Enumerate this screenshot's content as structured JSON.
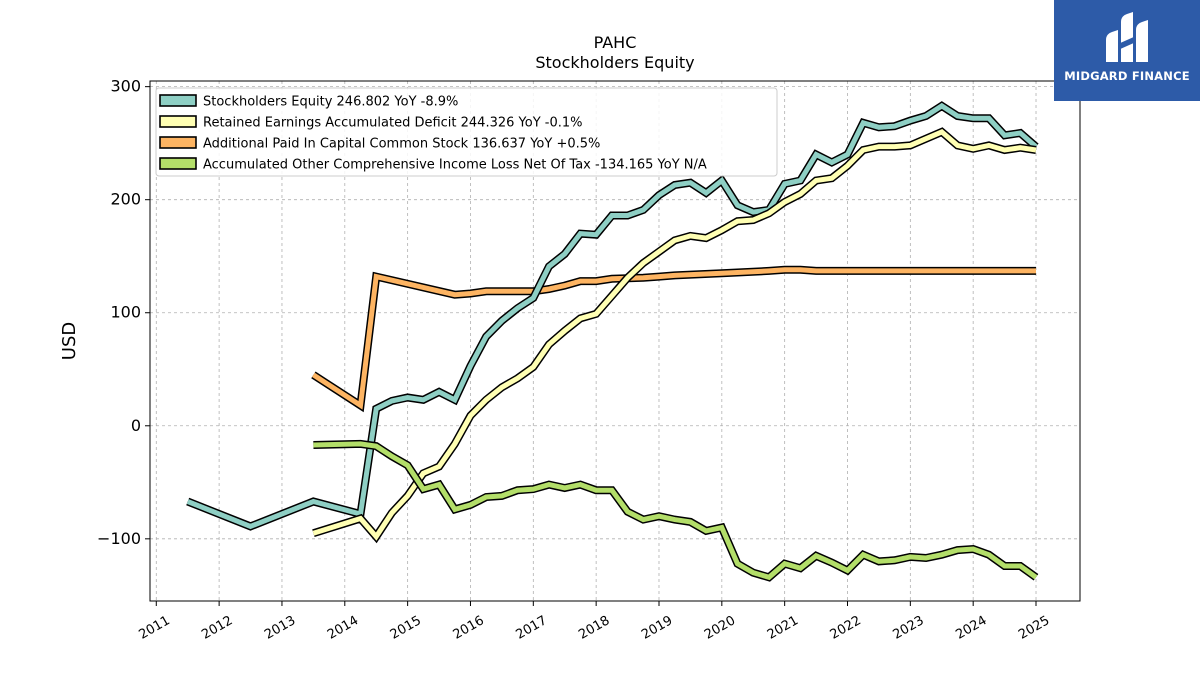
{
  "brand": {
    "name": "MIDGARD FINANCE",
    "color": "#2d5ba8",
    "icon": "midgard-logo-icon"
  },
  "chart_data": {
    "type": "line",
    "title": "PAHC",
    "subtitle": "Stockholders  Equity",
    "xlabel": "",
    "ylabel": "USD",
    "xlim": [
      2010.9,
      2025.7
    ],
    "ylim": [
      -155,
      305
    ],
    "x_ticks": [
      "2011",
      "2012",
      "2013",
      "2014",
      "2015",
      "2016",
      "2017",
      "2018",
      "2019",
      "2020",
      "2021",
      "2022",
      "2023",
      "2024",
      "2025"
    ],
    "y_ticks": [
      -100,
      0,
      100,
      200,
      300
    ],
    "y_tick_labels": [
      "−100",
      "0",
      "100",
      "200",
      "300"
    ],
    "grid": true,
    "legend_position": "top-left",
    "series": [
      {
        "name": "Stockholders Equity  246.802 YoY -8.9%",
        "color": "#8ecfc4",
        "points": [
          [
            2011.5,
            -67
          ],
          [
            2012.5,
            -89
          ],
          [
            2013.5,
            -67
          ],
          [
            2014.25,
            -78
          ],
          [
            2014.5,
            15
          ],
          [
            2014.75,
            22
          ],
          [
            2015.0,
            25
          ],
          [
            2015.25,
            23
          ],
          [
            2015.5,
            30
          ],
          [
            2015.75,
            23
          ],
          [
            2016.0,
            53
          ],
          [
            2016.25,
            79
          ],
          [
            2016.5,
            93
          ],
          [
            2016.75,
            104
          ],
          [
            2017.0,
            113
          ],
          [
            2017.25,
            141
          ],
          [
            2017.5,
            152
          ],
          [
            2017.75,
            170
          ],
          [
            2018.0,
            169
          ],
          [
            2018.25,
            186
          ],
          [
            2018.5,
            186
          ],
          [
            2018.75,
            191
          ],
          [
            2019.0,
            204
          ],
          [
            2019.25,
            213
          ],
          [
            2019.5,
            215
          ],
          [
            2019.75,
            206
          ],
          [
            2020.0,
            217
          ],
          [
            2020.25,
            195
          ],
          [
            2020.5,
            189
          ],
          [
            2020.75,
            191
          ],
          [
            2021.0,
            214
          ],
          [
            2021.25,
            217
          ],
          [
            2021.5,
            240
          ],
          [
            2021.75,
            233
          ],
          [
            2022.0,
            240
          ],
          [
            2022.25,
            268
          ],
          [
            2022.5,
            264
          ],
          [
            2022.75,
            265
          ],
          [
            2023.0,
            270
          ],
          [
            2023.25,
            274
          ],
          [
            2023.5,
            283
          ],
          [
            2023.75,
            274
          ],
          [
            2024.0,
            272
          ],
          [
            2024.25,
            272
          ],
          [
            2024.5,
            257
          ],
          [
            2024.75,
            259
          ],
          [
            2025.0,
            247
          ]
        ]
      },
      {
        "name": "Retained Earnings Accumulated Deficit  244.326 YoY -0.1%",
        "color": "#ffffb3",
        "points": [
          [
            2013.5,
            -95
          ],
          [
            2014.25,
            -82
          ],
          [
            2014.5,
            -98
          ],
          [
            2014.75,
            -77
          ],
          [
            2015.0,
            -62
          ],
          [
            2015.25,
            -42
          ],
          [
            2015.5,
            -36
          ],
          [
            2015.75,
            -16
          ],
          [
            2016.0,
            9
          ],
          [
            2016.25,
            23
          ],
          [
            2016.5,
            34
          ],
          [
            2016.75,
            42
          ],
          [
            2017.0,
            52
          ],
          [
            2017.25,
            72
          ],
          [
            2017.5,
            84
          ],
          [
            2017.75,
            95
          ],
          [
            2018.0,
            99
          ],
          [
            2018.25,
            115
          ],
          [
            2018.5,
            131
          ],
          [
            2018.75,
            144
          ],
          [
            2019.0,
            154
          ],
          [
            2019.25,
            164
          ],
          [
            2019.5,
            168
          ],
          [
            2019.75,
            166
          ],
          [
            2020.0,
            173
          ],
          [
            2020.25,
            181
          ],
          [
            2020.5,
            182
          ],
          [
            2020.75,
            188
          ],
          [
            2021.0,
            198
          ],
          [
            2021.25,
            205
          ],
          [
            2021.5,
            217
          ],
          [
            2021.75,
            219
          ],
          [
            2022.0,
            230
          ],
          [
            2022.25,
            244
          ],
          [
            2022.5,
            247
          ],
          [
            2022.75,
            247
          ],
          [
            2023.0,
            248
          ],
          [
            2023.25,
            254
          ],
          [
            2023.5,
            260
          ],
          [
            2023.75,
            248
          ],
          [
            2024.0,
            245
          ],
          [
            2024.25,
            248
          ],
          [
            2024.5,
            244
          ],
          [
            2024.75,
            246
          ],
          [
            2025.0,
            244
          ]
        ]
      },
      {
        "name": "Additional Paid In Capital Common Stock  136.637 YoY +0.5%",
        "color": "#fdb462",
        "points": [
          [
            2013.5,
            45
          ],
          [
            2014.25,
            18
          ],
          [
            2014.5,
            132
          ],
          [
            2015.75,
            116
          ],
          [
            2016.0,
            117
          ],
          [
            2016.25,
            119
          ],
          [
            2016.75,
            119
          ],
          [
            2017.0,
            119
          ],
          [
            2017.25,
            121
          ],
          [
            2017.5,
            124
          ],
          [
            2017.75,
            128
          ],
          [
            2018.0,
            128
          ],
          [
            2018.25,
            130
          ],
          [
            2018.75,
            131
          ],
          [
            2019.0,
            132
          ],
          [
            2019.25,
            133
          ],
          [
            2020.0,
            135
          ],
          [
            2020.75,
            137
          ],
          [
            2021.0,
            138
          ],
          [
            2021.25,
            138
          ],
          [
            2021.5,
            137
          ],
          [
            2022.0,
            137
          ],
          [
            2023.0,
            137
          ],
          [
            2024.0,
            137
          ],
          [
            2025.0,
            137
          ]
        ]
      },
      {
        "name": "Accumulated Other Comprehensive Income Loss Net Of Tax  -134.165 YoY N/A",
        "color": "#b3de69",
        "points": [
          [
            2013.5,
            -17
          ],
          [
            2014.25,
            -16
          ],
          [
            2014.5,
            -18
          ],
          [
            2014.75,
            -27
          ],
          [
            2015.0,
            -35
          ],
          [
            2015.25,
            -56
          ],
          [
            2015.5,
            -52
          ],
          [
            2015.75,
            -74
          ],
          [
            2016.0,
            -70
          ],
          [
            2016.25,
            -63
          ],
          [
            2016.5,
            -62
          ],
          [
            2016.75,
            -57
          ],
          [
            2017.0,
            -56
          ],
          [
            2017.25,
            -52
          ],
          [
            2017.5,
            -55
          ],
          [
            2017.75,
            -52
          ],
          [
            2018.0,
            -57
          ],
          [
            2018.25,
            -57
          ],
          [
            2018.5,
            -76
          ],
          [
            2018.75,
            -83
          ],
          [
            2019.0,
            -80
          ],
          [
            2019.25,
            -83
          ],
          [
            2019.5,
            -85
          ],
          [
            2019.75,
            -93
          ],
          [
            2020.0,
            -90
          ],
          [
            2020.25,
            -122
          ],
          [
            2020.5,
            -130
          ],
          [
            2020.75,
            -134
          ],
          [
            2021.0,
            -122
          ],
          [
            2021.25,
            -126
          ],
          [
            2021.5,
            -115
          ],
          [
            2021.75,
            -121
          ],
          [
            2022.0,
            -128
          ],
          [
            2022.25,
            -114
          ],
          [
            2022.5,
            -120
          ],
          [
            2022.75,
            -119
          ],
          [
            2023.0,
            -116
          ],
          [
            2023.25,
            -117
          ],
          [
            2023.5,
            -114
          ],
          [
            2023.75,
            -110
          ],
          [
            2024.0,
            -109
          ],
          [
            2024.25,
            -114
          ],
          [
            2024.5,
            -124
          ],
          [
            2024.75,
            -124
          ],
          [
            2025.0,
            -134
          ]
        ]
      }
    ]
  }
}
